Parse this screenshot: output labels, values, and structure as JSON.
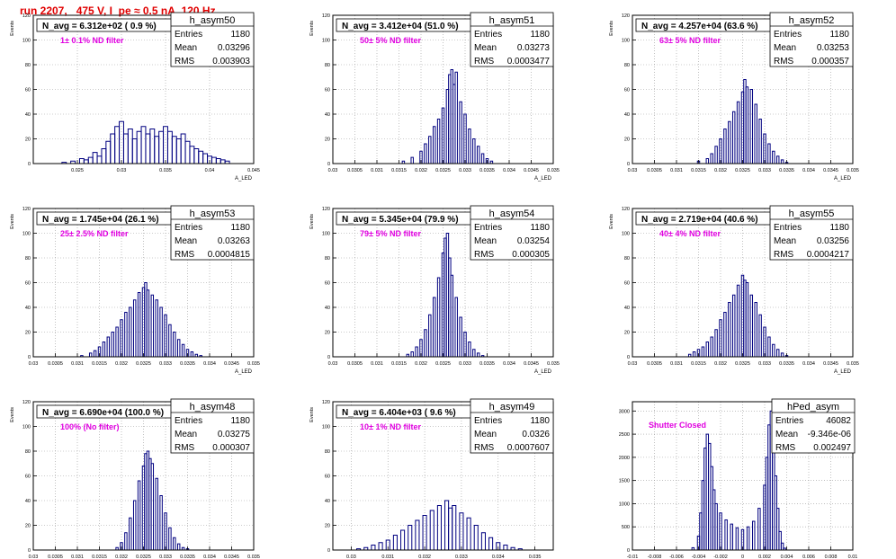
{
  "page_title": "run 2207,   475 V, I_pe ≈ 0.5 nA, 120 Hz",
  "colors": {
    "title": "#e00000",
    "annotation": "#e000e0",
    "histogram": "#000080",
    "grid": "#9a9a9a",
    "frame": "#000000"
  },
  "stats_labels": {
    "entries": "Entries",
    "mean": "Mean",
    "rms": "RMS"
  },
  "chart_data": [
    {
      "type": "bar",
      "name": "h_asym50",
      "title": "N_avg = 6.312e+02 ( 0.9 %)",
      "annotation": "1± 0.1% ND filter",
      "stats": {
        "entries": "1180",
        "mean": "0.03296",
        "rms": "0.003903"
      },
      "ylabel": "Events",
      "xlabel": "A_LED",
      "xlim": [
        0.02,
        0.045
      ],
      "ylim": [
        0,
        120
      ],
      "xticks": [
        0.025,
        0.03,
        0.035,
        0.04,
        0.045
      ],
      "xtick_labels": [
        "0.025",
        "0.03",
        "0.035",
        "0.04",
        "0.045"
      ],
      "yticks": [
        0,
        20,
        40,
        60,
        80,
        100,
        120
      ],
      "bins": [
        [
          0.0235,
          1
        ],
        [
          0.0245,
          2
        ],
        [
          0.0255,
          4
        ],
        [
          0.026,
          3
        ],
        [
          0.0265,
          5
        ],
        [
          0.027,
          9
        ],
        [
          0.0275,
          6
        ],
        [
          0.028,
          12
        ],
        [
          0.0285,
          18
        ],
        [
          0.029,
          24
        ],
        [
          0.0295,
          30
        ],
        [
          0.03,
          34
        ],
        [
          0.0305,
          24
        ],
        [
          0.031,
          28
        ],
        [
          0.0315,
          20
        ],
        [
          0.032,
          26
        ],
        [
          0.0325,
          30
        ],
        [
          0.033,
          24
        ],
        [
          0.0335,
          28
        ],
        [
          0.034,
          22
        ],
        [
          0.0345,
          26
        ],
        [
          0.035,
          30
        ],
        [
          0.0355,
          26
        ],
        [
          0.036,
          22
        ],
        [
          0.0365,
          20
        ],
        [
          0.037,
          24
        ],
        [
          0.0375,
          18
        ],
        [
          0.038,
          14
        ],
        [
          0.0385,
          12
        ],
        [
          0.039,
          10
        ],
        [
          0.0395,
          8
        ],
        [
          0.04,
          6
        ],
        [
          0.0405,
          5
        ],
        [
          0.041,
          4
        ],
        [
          0.0415,
          3
        ],
        [
          0.042,
          2
        ]
      ]
    },
    {
      "type": "bar",
      "name": "h_asym51",
      "title": "N_avg = 3.412e+04 (51.0 %)",
      "annotation": "50± 5% ND filter",
      "stats": {
        "entries": "1180",
        "mean": "0.03273",
        "rms": "0.0003477"
      },
      "ylabel": "Events",
      "xlabel": "A_LED",
      "xlim": [
        0.03,
        0.035
      ],
      "ylim": [
        0,
        120
      ],
      "xticks": [
        0.03,
        0.0305,
        0.031,
        0.0315,
        0.032,
        0.0325,
        0.033,
        0.0335,
        0.034,
        0.0345,
        0.035
      ],
      "xtick_labels": [
        "0.03",
        "0.0305",
        "0.031",
        "0.0315",
        "0.032",
        "0.0325",
        "0.033",
        "0.0335",
        "0.034",
        "0.0345",
        "0.035"
      ],
      "yticks": [
        0,
        20,
        40,
        60,
        80,
        100,
        120
      ],
      "bins": [
        [
          0.0316,
          2
        ],
        [
          0.0318,
          5
        ],
        [
          0.032,
          10
        ],
        [
          0.0321,
          16
        ],
        [
          0.0322,
          22
        ],
        [
          0.0323,
          30
        ],
        [
          0.0324,
          36
        ],
        [
          0.0325,
          45
        ],
        [
          0.0326,
          60
        ],
        [
          0.03265,
          72
        ],
        [
          0.0327,
          76
        ],
        [
          0.03275,
          64
        ],
        [
          0.0328,
          74
        ],
        [
          0.0329,
          50
        ],
        [
          0.033,
          40
        ],
        [
          0.0331,
          28
        ],
        [
          0.0332,
          20
        ],
        [
          0.0333,
          14
        ],
        [
          0.0334,
          8
        ],
        [
          0.0335,
          4
        ],
        [
          0.0336,
          2
        ]
      ]
    },
    {
      "type": "bar",
      "name": "h_asym52",
      "title": "N_avg = 4.257e+04 (63.6 %)",
      "annotation": "63± 5% ND filter",
      "stats": {
        "entries": "1180",
        "mean": "0.03253",
        "rms": "0.000357"
      },
      "ylabel": "Events",
      "xlabel": "A_LED",
      "xlim": [
        0.03,
        0.035
      ],
      "ylim": [
        0,
        120
      ],
      "xticks": [
        0.03,
        0.0305,
        0.031,
        0.0315,
        0.032,
        0.0325,
        0.033,
        0.0335,
        0.034,
        0.0345,
        0.035
      ],
      "xtick_labels": [
        "0.03",
        "0.0305",
        "0.031",
        "0.0315",
        "0.032",
        "0.0325",
        "0.033",
        "0.0335",
        "0.034",
        "0.0345",
        "0.035"
      ],
      "yticks": [
        0,
        20,
        40,
        60,
        80,
        100,
        120
      ],
      "bins": [
        [
          0.0315,
          2
        ],
        [
          0.0317,
          4
        ],
        [
          0.0318,
          8
        ],
        [
          0.0319,
          14
        ],
        [
          0.032,
          20
        ],
        [
          0.0321,
          28
        ],
        [
          0.0322,
          34
        ],
        [
          0.0323,
          42
        ],
        [
          0.0324,
          50
        ],
        [
          0.0325,
          58
        ],
        [
          0.03255,
          68
        ],
        [
          0.0326,
          62
        ],
        [
          0.0327,
          60
        ],
        [
          0.0328,
          48
        ],
        [
          0.0329,
          36
        ],
        [
          0.033,
          24
        ],
        [
          0.0331,
          16
        ],
        [
          0.0332,
          10
        ],
        [
          0.0333,
          6
        ],
        [
          0.0334,
          3
        ],
        [
          0.0335,
          1
        ]
      ]
    },
    {
      "type": "bar",
      "name": "h_asym53",
      "title": "N_avg = 1.745e+04 (26.1 %)",
      "annotation": "25± 2.5% ND filter",
      "stats": {
        "entries": "1180",
        "mean": "0.03263",
        "rms": "0.0004815"
      },
      "ylabel": "Events",
      "xlabel": "A_LED",
      "xlim": [
        0.03,
        0.035
      ],
      "ylim": [
        0,
        120
      ],
      "xticks": [
        0.03,
        0.0305,
        0.031,
        0.0315,
        0.032,
        0.0325,
        0.033,
        0.0335,
        0.034,
        0.0345,
        0.035
      ],
      "xtick_labels": [
        "0.03",
        "0.0305",
        "0.031",
        "0.0315",
        "0.032",
        "0.0325",
        "0.033",
        "0.0335",
        "0.034",
        "0.0345",
        "0.035"
      ],
      "yticks": [
        0,
        20,
        40,
        60,
        80,
        100,
        120
      ],
      "bins": [
        [
          0.0311,
          1
        ],
        [
          0.0313,
          3
        ],
        [
          0.0314,
          5
        ],
        [
          0.0315,
          8
        ],
        [
          0.0316,
          12
        ],
        [
          0.0317,
          16
        ],
        [
          0.0318,
          20
        ],
        [
          0.0319,
          24
        ],
        [
          0.032,
          30
        ],
        [
          0.0321,
          36
        ],
        [
          0.0322,
          40
        ],
        [
          0.0323,
          46
        ],
        [
          0.0324,
          52
        ],
        [
          0.0325,
          56
        ],
        [
          0.03255,
          60
        ],
        [
          0.0326,
          54
        ],
        [
          0.0327,
          50
        ],
        [
          0.0328,
          46
        ],
        [
          0.0329,
          40
        ],
        [
          0.033,
          34
        ],
        [
          0.0331,
          26
        ],
        [
          0.0332,
          20
        ],
        [
          0.0333,
          14
        ],
        [
          0.0334,
          10
        ],
        [
          0.0335,
          6
        ],
        [
          0.0336,
          4
        ],
        [
          0.0337,
          2
        ],
        [
          0.0338,
          1
        ]
      ]
    },
    {
      "type": "bar",
      "name": "h_asym54",
      "title": "N_avg = 5.345e+04 (79.9 %)",
      "annotation": "79± 5% ND filter",
      "stats": {
        "entries": "1180",
        "mean": "0.03254",
        "rms": "0.000305"
      },
      "ylabel": "Events",
      "xlabel": "A_LED",
      "xlim": [
        0.03,
        0.035
      ],
      "ylim": [
        0,
        120
      ],
      "xticks": [
        0.03,
        0.0305,
        0.031,
        0.0315,
        0.032,
        0.0325,
        0.033,
        0.0335,
        0.034,
        0.0345,
        0.035
      ],
      "xtick_labels": [
        "0.03",
        "0.0305",
        "0.031",
        "0.0315",
        "0.032",
        "0.0325",
        "0.033",
        "0.0335",
        "0.034",
        "0.0345",
        "0.035"
      ],
      "yticks": [
        0,
        20,
        40,
        60,
        80,
        100,
        120
      ],
      "bins": [
        [
          0.0317,
          2
        ],
        [
          0.0318,
          4
        ],
        [
          0.0319,
          8
        ],
        [
          0.032,
          14
        ],
        [
          0.0321,
          22
        ],
        [
          0.0322,
          34
        ],
        [
          0.0323,
          48
        ],
        [
          0.0324,
          64
        ],
        [
          0.0325,
          84
        ],
        [
          0.03255,
          96
        ],
        [
          0.0326,
          100
        ],
        [
          0.03265,
          80
        ],
        [
          0.0327,
          66
        ],
        [
          0.0328,
          48
        ],
        [
          0.0329,
          32
        ],
        [
          0.033,
          20
        ],
        [
          0.0331,
          12
        ],
        [
          0.0332,
          6
        ],
        [
          0.0333,
          3
        ],
        [
          0.0334,
          1
        ]
      ]
    },
    {
      "type": "bar",
      "name": "h_asym55",
      "title": "N_avg = 2.719e+04 (40.6 %)",
      "annotation": "40± 4% ND filter",
      "stats": {
        "entries": "1180",
        "mean": "0.03256",
        "rms": "0.0004217"
      },
      "ylabel": "Events",
      "xlabel": "A_LED",
      "xlim": [
        0.03,
        0.035
      ],
      "ylim": [
        0,
        120
      ],
      "xticks": [
        0.03,
        0.0305,
        0.031,
        0.0315,
        0.032,
        0.0325,
        0.033,
        0.0335,
        0.034,
        0.0345,
        0.035
      ],
      "xtick_labels": [
        "0.03",
        "0.0305",
        "0.031",
        "0.0315",
        "0.032",
        "0.0325",
        "0.033",
        "0.0335",
        "0.034",
        "0.0345",
        "0.035"
      ],
      "yticks": [
        0,
        20,
        40,
        60,
        80,
        100,
        120
      ],
      "bins": [
        [
          0.0313,
          2
        ],
        [
          0.0314,
          4
        ],
        [
          0.0315,
          6
        ],
        [
          0.0316,
          8
        ],
        [
          0.0317,
          12
        ],
        [
          0.0318,
          16
        ],
        [
          0.0319,
          22
        ],
        [
          0.032,
          30
        ],
        [
          0.0321,
          36
        ],
        [
          0.0322,
          44
        ],
        [
          0.0323,
          50
        ],
        [
          0.0324,
          58
        ],
        [
          0.0325,
          66
        ],
        [
          0.03255,
          62
        ],
        [
          0.0326,
          60
        ],
        [
          0.0327,
          50
        ],
        [
          0.0328,
          44
        ],
        [
          0.0329,
          34
        ],
        [
          0.033,
          24
        ],
        [
          0.0331,
          16
        ],
        [
          0.0332,
          10
        ],
        [
          0.0333,
          6
        ],
        [
          0.0334,
          3
        ],
        [
          0.0335,
          1
        ]
      ]
    },
    {
      "type": "bar",
      "name": "h_asym48",
      "title": "N_avg = 6.690e+04 (100.0 %)",
      "annotation": "100% (No filter)",
      "stats": {
        "entries": "1180",
        "mean": "0.03275",
        "rms": "0.000307"
      },
      "ylabel": "Events",
      "xlabel": "A_LED",
      "xlim": [
        0.03,
        0.035
      ],
      "ylim": [
        0,
        120
      ],
      "xticks": [
        0.03,
        0.0305,
        0.031,
        0.0315,
        0.032,
        0.0325,
        0.033,
        0.0335,
        0.034,
        0.0345,
        0.035
      ],
      "xtick_labels": [
        "0.03",
        "0.0305",
        "0.031",
        "0.0315",
        "0.032",
        "0.0325",
        "0.033",
        "0.0335",
        "0.034",
        "0.0345",
        "0.035"
      ],
      "yticks": [
        0,
        20,
        40,
        60,
        80,
        100,
        120
      ],
      "bins": [
        [
          0.0319,
          2
        ],
        [
          0.032,
          6
        ],
        [
          0.0321,
          14
        ],
        [
          0.0322,
          26
        ],
        [
          0.0323,
          40
        ],
        [
          0.0324,
          56
        ],
        [
          0.0325,
          68
        ],
        [
          0.03255,
          78
        ],
        [
          0.0326,
          80
        ],
        [
          0.03265,
          74
        ],
        [
          0.0327,
          70
        ],
        [
          0.0328,
          58
        ],
        [
          0.0329,
          44
        ],
        [
          0.033,
          30
        ],
        [
          0.0331,
          18
        ],
        [
          0.0332,
          10
        ],
        [
          0.0333,
          5
        ],
        [
          0.0334,
          2
        ],
        [
          0.0335,
          1
        ]
      ]
    },
    {
      "type": "bar",
      "name": "h_asym49",
      "title": "N_avg = 6.404e+03 ( 9.6 %)",
      "annotation": "10± 1% ND filter",
      "stats": {
        "entries": "1180",
        "mean": "0.0326",
        "rms": "0.0007607"
      },
      "ylabel": "Events",
      "xlabel": "A_LED",
      "xlim": [
        0.0295,
        0.0355
      ],
      "ylim": [
        0,
        120
      ],
      "xticks": [
        0.03,
        0.031,
        0.032,
        0.033,
        0.034,
        0.035
      ],
      "xtick_labels": [
        "0.03",
        "0.031",
        "0.032",
        "0.033",
        "0.034",
        "0.035"
      ],
      "yticks": [
        0,
        20,
        40,
        60,
        80,
        100,
        120
      ],
      "bins": [
        [
          0.0302,
          1
        ],
        [
          0.0304,
          2
        ],
        [
          0.0306,
          4
        ],
        [
          0.0308,
          6
        ],
        [
          0.031,
          8
        ],
        [
          0.0312,
          12
        ],
        [
          0.0314,
          16
        ],
        [
          0.0316,
          20
        ],
        [
          0.0318,
          24
        ],
        [
          0.032,
          28
        ],
        [
          0.0322,
          32
        ],
        [
          0.0324,
          36
        ],
        [
          0.0326,
          40
        ],
        [
          0.0327,
          34
        ],
        [
          0.0328,
          36
        ],
        [
          0.033,
          30
        ],
        [
          0.0332,
          26
        ],
        [
          0.0334,
          20
        ],
        [
          0.0336,
          14
        ],
        [
          0.0338,
          10
        ],
        [
          0.034,
          6
        ],
        [
          0.0342,
          4
        ],
        [
          0.0344,
          2
        ],
        [
          0.0346,
          1
        ]
      ]
    },
    {
      "type": "bar",
      "name": "hPed_asym",
      "title": "",
      "annotation": "Shutter Closed",
      "stats": {
        "entries": "46082",
        "mean": "-9.346e-06",
        "rms": "0.002497"
      },
      "ylabel": "",
      "xlabel": "",
      "xlim": [
        -0.01,
        0.01
      ],
      "ylim": [
        0,
        3200
      ],
      "xticks": [
        -0.01,
        -0.008,
        -0.006,
        -0.004,
        -0.002,
        0,
        0.002,
        0.004,
        0.006,
        0.008,
        0.01
      ],
      "xtick_labels": [
        "-0.01",
        "-0.008",
        "-0.006",
        "-0.004",
        "-0.002",
        "0",
        "0.002",
        "0.004",
        "0.006",
        "0.008",
        "0.01"
      ],
      "yticks": [
        0,
        500,
        1000,
        1500,
        2000,
        2500,
        3000
      ],
      "bins": [
        [
          -0.0045,
          50
        ],
        [
          -0.004,
          300
        ],
        [
          -0.0038,
          800
        ],
        [
          -0.0036,
          1500
        ],
        [
          -0.0034,
          2200
        ],
        [
          -0.0032,
          2500
        ],
        [
          -0.003,
          2300
        ],
        [
          -0.0028,
          1800
        ],
        [
          -0.0026,
          1300
        ],
        [
          -0.0024,
          1000
        ],
        [
          -0.002,
          800
        ],
        [
          -0.0015,
          650
        ],
        [
          -0.001,
          560
        ],
        [
          -0.0005,
          480
        ],
        [
          0,
          440
        ],
        [
          0.0005,
          500
        ],
        [
          0.001,
          620
        ],
        [
          0.0015,
          900
        ],
        [
          0.002,
          1400
        ],
        [
          0.0022,
          2000
        ],
        [
          0.0024,
          2700
        ],
        [
          0.0026,
          3000
        ],
        [
          0.0028,
          2400
        ],
        [
          0.003,
          1600
        ],
        [
          0.0032,
          900
        ],
        [
          0.0034,
          400
        ],
        [
          0.0036,
          150
        ],
        [
          0.0038,
          40
        ]
      ]
    }
  ]
}
